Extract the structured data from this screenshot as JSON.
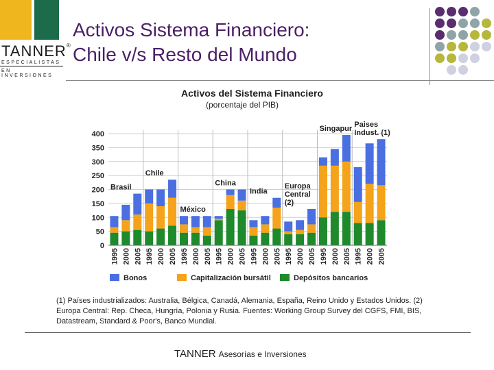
{
  "logo": {
    "name": "TANNER",
    "registered": "®",
    "sub1": "ESPECIALISTAS",
    "sub2": "EN INVERSIONES",
    "colors": [
      "#f0b61e",
      "#1f1f1f",
      "#1c6b4a"
    ]
  },
  "title": {
    "line1": "Activos Sistema Financiero:",
    "line2": "Chile v/s Resto del Mundo"
  },
  "decor_dot_colors": [
    "#5a2d6e",
    "#8fa4a6",
    "#b5b83a",
    "#cfd0e0"
  ],
  "chart_data": {
    "type": "bar",
    "stacked": true,
    "title": "Activos del Sistema Financiero",
    "subtitle": "(porcentaje del PIB)",
    "ylim": [
      0,
      400
    ],
    "yticks": [
      0,
      50,
      100,
      150,
      200,
      250,
      300,
      350,
      400
    ],
    "groups": [
      {
        "label": "Brasil",
        "years": [
          "1995",
          "2000",
          "2005"
        ],
        "depositos": [
          45,
          50,
          55
        ],
        "capitalizacion": [
          20,
          40,
          55
        ],
        "bonos": [
          40,
          55,
          75
        ]
      },
      {
        "label": "Chile",
        "years": [
          "1995",
          "2000",
          "2005"
        ],
        "depositos": [
          50,
          60,
          70
        ],
        "capitalizacion": [
          100,
          80,
          100
        ],
        "bonos": [
          50,
          60,
          65
        ]
      },
      {
        "label": "México",
        "years": [
          "1995",
          "2000",
          "2005"
        ],
        "depositos": [
          45,
          45,
          35
        ],
        "capitalizacion": [
          30,
          20,
          30
        ],
        "bonos": [
          30,
          40,
          40
        ]
      },
      {
        "label": "China",
        "years": [
          "1995",
          "2000",
          "2005"
        ],
        "depositos": [
          90,
          130,
          125
        ],
        "capitalizacion": [
          5,
          50,
          35
        ],
        "bonos": [
          10,
          20,
          40
        ]
      },
      {
        "label": "India",
        "years": [
          "1995",
          "2000",
          "2005"
        ],
        "depositos": [
          35,
          45,
          60
        ],
        "capitalizacion": [
          30,
          30,
          75
        ],
        "bonos": [
          25,
          30,
          35
        ]
      },
      {
        "label": "Europa Central (2)",
        "years": [
          "1995",
          "2000",
          "2005"
        ],
        "depositos": [
          40,
          40,
          45
        ],
        "capitalizacion": [
          10,
          15,
          30
        ],
        "bonos": [
          35,
          35,
          55
        ]
      },
      {
        "label": "Singapur",
        "years": [
          "1995",
          "2000",
          "2005"
        ],
        "depositos": [
          100,
          120,
          120
        ],
        "capitalizacion": [
          185,
          165,
          180
        ],
        "bonos": [
          30,
          60,
          95
        ]
      },
      {
        "label": "Paises Indust. (1)",
        "years": [
          "1995",
          "2000",
          "2005"
        ],
        "depositos": [
          80,
          80,
          90
        ],
        "capitalizacion": [
          75,
          140,
          125
        ],
        "bonos": [
          125,
          145,
          165
        ]
      }
    ],
    "series": [
      {
        "name": "Bonos",
        "key": "bonos",
        "color": "#4a6fe0"
      },
      {
        "name": "Capitalización bursátil",
        "key": "capitalizacion",
        "color": "#f5a31a"
      },
      {
        "name": "Depósitos bancarios",
        "key": "depositos",
        "color": "#1e8a2c"
      }
    ],
    "legend_position": "bottom"
  },
  "footnote": "(1) Países industrializados: Australia, Bélgica, Canadá, Alemania, España, Reino Unido y Estados Unidos. (2) Europa Central: Rep. Checa, Hungría, Polonia y Rusia. Fuentes: Working Group Survey del CGFS, FMI, BIS, Datastream, Standard & Poor's, Banco Mundial.",
  "footer": {
    "brand": "TANNER",
    "text": "Asesorías e Inversiones"
  }
}
